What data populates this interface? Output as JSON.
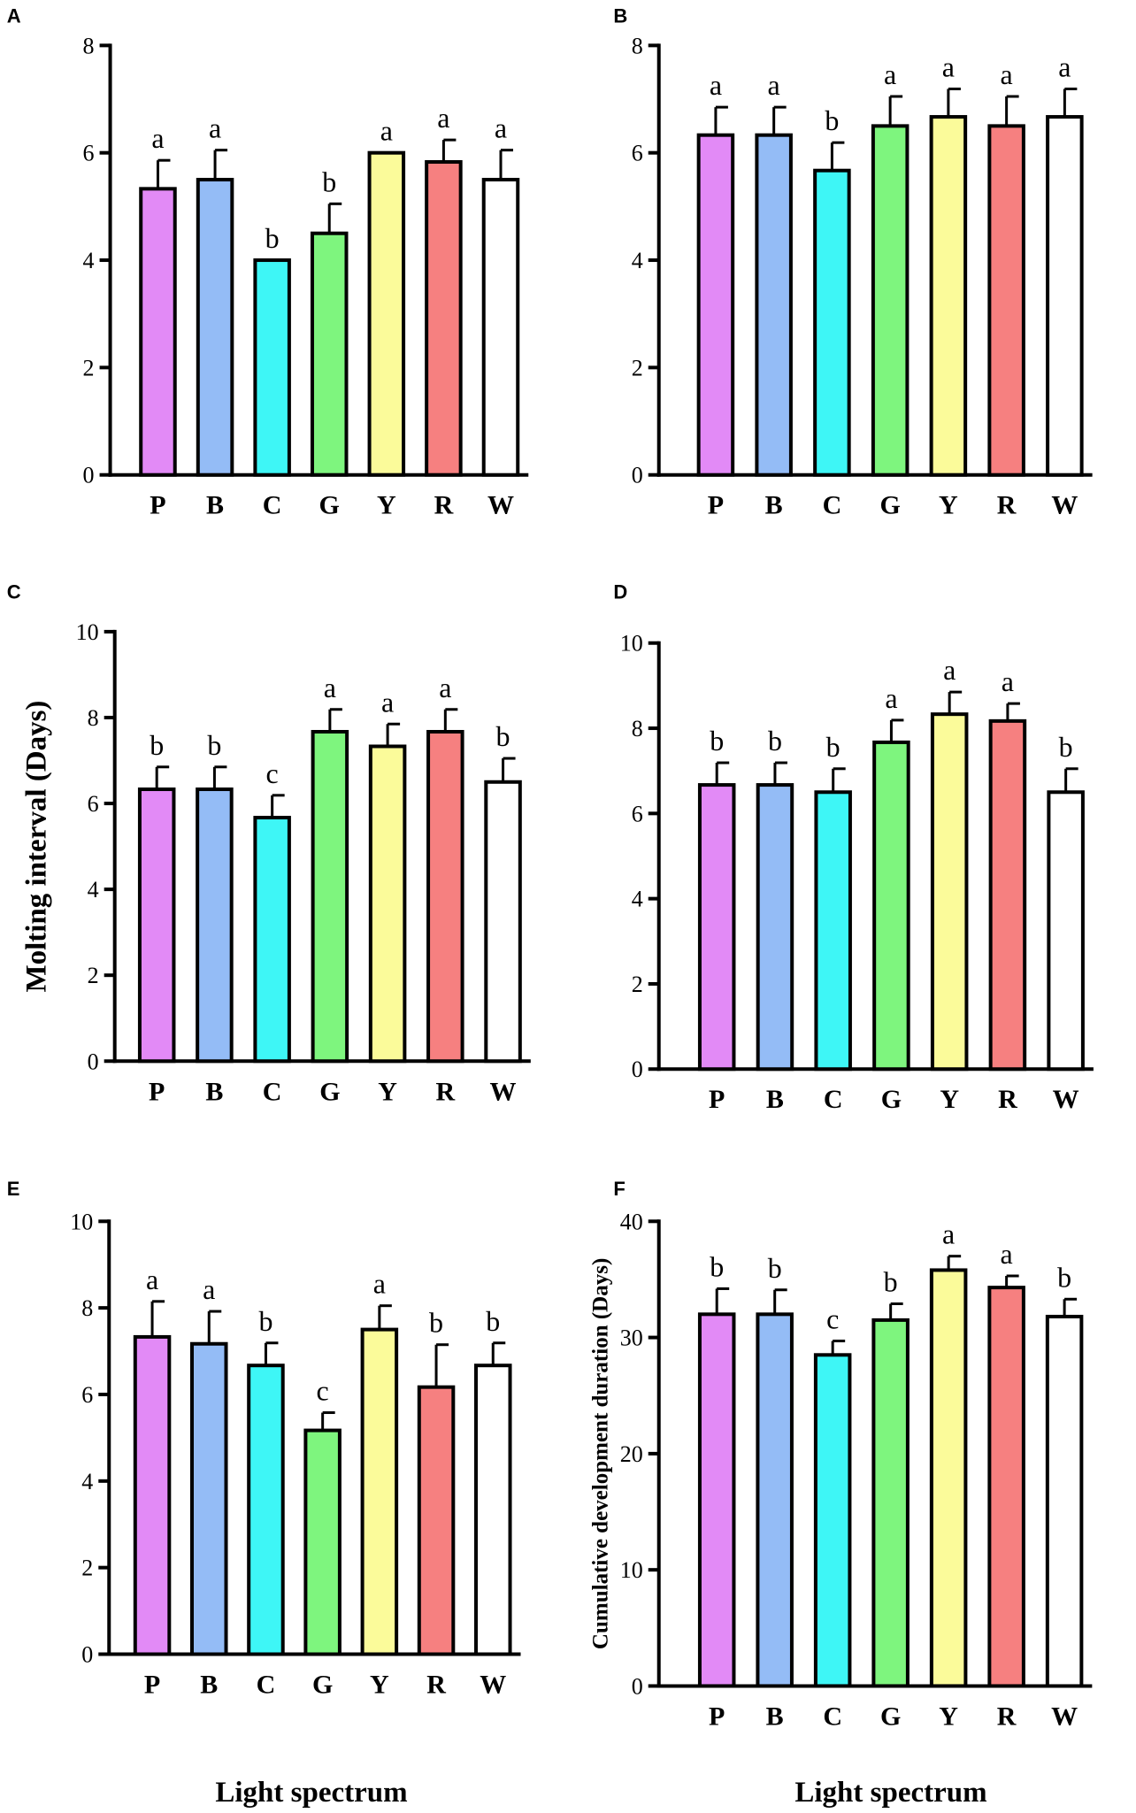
{
  "figure": {
    "xlabel": "Light spectrum",
    "shared_ylabel": "Molting interval (Days)"
  },
  "colors": {
    "P": "#e28af6",
    "B": "#94bcf6",
    "C": "#3ef6f6",
    "G": "#7ef57e",
    "Y": "#fbfb9a",
    "R": "#f68080",
    "W": "#ffffff"
  },
  "chart_data": [
    {
      "panel": "A",
      "type": "bar",
      "categories": [
        "P",
        "B",
        "C",
        "G",
        "Y",
        "R",
        "W"
      ],
      "values": [
        5.33,
        5.5,
        4.0,
        4.5,
        6.0,
        5.83,
        5.5
      ],
      "errors": [
        0.53,
        0.55,
        0.0,
        0.55,
        0.0,
        0.41,
        0.55
      ],
      "letters": [
        "a",
        "a",
        "b",
        "b",
        "a",
        "a",
        "a"
      ],
      "ylim": [
        0,
        8
      ],
      "yticks": [
        0,
        2,
        4,
        6,
        8
      ],
      "ylabel": ""
    },
    {
      "panel": "B",
      "type": "bar",
      "categories": [
        "P",
        "B",
        "C",
        "G",
        "Y",
        "R",
        "W"
      ],
      "values": [
        6.33,
        6.33,
        5.67,
        6.5,
        6.67,
        6.5,
        6.67
      ],
      "errors": [
        0.52,
        0.52,
        0.52,
        0.55,
        0.52,
        0.55,
        0.52
      ],
      "letters": [
        "a",
        "a",
        "b",
        "a",
        "a",
        "a",
        "a"
      ],
      "ylim": [
        0,
        8
      ],
      "yticks": [
        0,
        2,
        4,
        6,
        8
      ],
      "ylabel": ""
    },
    {
      "panel": "C",
      "type": "bar",
      "categories": [
        "P",
        "B",
        "C",
        "G",
        "Y",
        "R",
        "W"
      ],
      "values": [
        6.33,
        6.33,
        5.67,
        7.67,
        7.33,
        7.67,
        6.5
      ],
      "errors": [
        0.52,
        0.52,
        0.52,
        0.52,
        0.52,
        0.52,
        0.55
      ],
      "letters": [
        "b",
        "b",
        "c",
        "a",
        "a",
        "a",
        "b"
      ],
      "ylim": [
        0,
        10
      ],
      "yticks": [
        0,
        2,
        4,
        6,
        8,
        10
      ],
      "ylabel": "Molting interval (Days)"
    },
    {
      "panel": "D",
      "type": "bar",
      "categories": [
        "P",
        "B",
        "C",
        "G",
        "Y",
        "R",
        "W"
      ],
      "values": [
        6.67,
        6.67,
        6.5,
        7.67,
        8.33,
        8.17,
        6.5
      ],
      "errors": [
        0.52,
        0.52,
        0.55,
        0.52,
        0.52,
        0.41,
        0.55
      ],
      "letters": [
        "b",
        "b",
        "b",
        "a",
        "a",
        "a",
        "b"
      ],
      "ylim": [
        0,
        10
      ],
      "yticks": [
        0,
        2,
        4,
        6,
        8,
        10
      ],
      "ylabel": ""
    },
    {
      "panel": "E",
      "type": "bar",
      "categories": [
        "P",
        "B",
        "C",
        "G",
        "Y",
        "R",
        "W"
      ],
      "values": [
        7.33,
        7.17,
        6.67,
        5.17,
        7.5,
        6.17,
        6.67
      ],
      "errors": [
        0.82,
        0.75,
        0.52,
        0.41,
        0.55,
        0.98,
        0.52
      ],
      "letters": [
        "a",
        "a",
        "b",
        "c",
        "a",
        "b",
        "b"
      ],
      "ylim": [
        0,
        10
      ],
      "yticks": [
        0,
        2,
        4,
        6,
        8,
        10
      ],
      "ylabel": ""
    },
    {
      "panel": "F",
      "type": "bar",
      "categories": [
        "P",
        "B",
        "C",
        "G",
        "Y",
        "R",
        "W"
      ],
      "values": [
        32.0,
        32.0,
        28.5,
        31.5,
        35.8,
        34.3,
        31.8
      ],
      "errors": [
        2.2,
        2.1,
        1.2,
        1.4,
        1.2,
        1.0,
        1.5
      ],
      "letters": [
        "b",
        "b",
        "c",
        "b",
        "a",
        "a",
        "b"
      ],
      "ylim": [
        0,
        40
      ],
      "yticks": [
        0,
        10,
        20,
        30,
        40
      ],
      "ylabel": "Cumulative development duration (Days)"
    }
  ]
}
